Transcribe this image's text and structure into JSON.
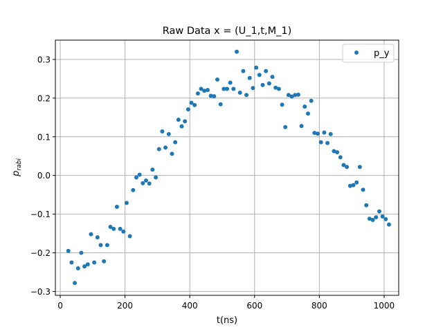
{
  "chart_data": {
    "type": "scatter",
    "title": "Raw Data x = (U_1,t,M_1)",
    "xlabel": "t(ns)",
    "ylabel_main": "p",
    "ylabel_sub": "rabi",
    "xlim": [
      -15,
      1045
    ],
    "ylim": [
      -0.31,
      0.35
    ],
    "xticks": [
      0,
      200,
      400,
      600,
      800,
      1000
    ],
    "xtick_labels": [
      "0",
      "200",
      "400",
      "600",
      "800",
      "1000"
    ],
    "yticks": [
      -0.3,
      -0.2,
      -0.1,
      0.0,
      0.1,
      0.2,
      0.3
    ],
    "ytick_labels": [
      "−0.3",
      "−0.2",
      "−0.1",
      "0.0",
      "0.1",
      "0.2",
      "0.3"
    ],
    "grid": true,
    "legend_position": "top-right",
    "colors": {
      "series": "#1f77b4",
      "grid": "#b0b0b0",
      "axes": "#000000"
    },
    "series": [
      {
        "name": "p_y",
        "points": [
          [
            25,
            -0.195
          ],
          [
            35,
            -0.225
          ],
          [
            45,
            -0.278
          ],
          [
            55,
            -0.24
          ],
          [
            65,
            -0.2
          ],
          [
            75,
            -0.235
          ],
          [
            85,
            -0.23
          ],
          [
            95,
            -0.152
          ],
          [
            105,
            -0.225
          ],
          [
            115,
            -0.16
          ],
          [
            125,
            -0.18
          ],
          [
            135,
            -0.222
          ],
          [
            145,
            -0.18
          ],
          [
            155,
            -0.133
          ],
          [
            165,
            -0.138
          ],
          [
            175,
            -0.081
          ],
          [
            185,
            -0.138
          ],
          [
            195,
            -0.145
          ],
          [
            205,
            -0.071
          ],
          [
            215,
            -0.157
          ],
          [
            225,
            -0.038
          ],
          [
            235,
            -0.005
          ],
          [
            245,
            0.002
          ],
          [
            255,
            -0.02
          ],
          [
            265,
            -0.013
          ],
          [
            275,
            -0.021
          ],
          [
            285,
            0.015
          ],
          [
            295,
            -0.005
          ],
          [
            305,
            0.068
          ],
          [
            315,
            0.114
          ],
          [
            325,
            0.072
          ],
          [
            335,
            0.107
          ],
          [
            345,
            0.056
          ],
          [
            355,
            0.086
          ],
          [
            365,
            0.144
          ],
          [
            375,
            0.127
          ],
          [
            385,
            0.14
          ],
          [
            395,
            0.171
          ],
          [
            405,
            0.188
          ],
          [
            415,
            0.182
          ],
          [
            425,
            0.212
          ],
          [
            435,
            0.224
          ],
          [
            445,
            0.219
          ],
          [
            455,
            0.221
          ],
          [
            465,
            0.206
          ],
          [
            475,
            0.205
          ],
          [
            485,
            0.248
          ],
          [
            495,
            0.184
          ],
          [
            505,
            0.224
          ],
          [
            515,
            0.224
          ],
          [
            525,
            0.24
          ],
          [
            535,
            0.224
          ],
          [
            545,
            0.32
          ],
          [
            555,
            0.214
          ],
          [
            565,
            0.27
          ],
          [
            575,
            0.208
          ],
          [
            585,
            0.252
          ],
          [
            595,
            0.226
          ],
          [
            605,
            0.279
          ],
          [
            615,
            0.26
          ],
          [
            625,
            0.234
          ],
          [
            635,
            0.27
          ],
          [
            645,
            0.238
          ],
          [
            655,
            0.255
          ],
          [
            665,
            0.227
          ],
          [
            675,
            0.224
          ],
          [
            685,
            0.183
          ],
          [
            695,
            0.125
          ],
          [
            705,
            0.208
          ],
          [
            715,
            0.204
          ],
          [
            725,
            0.208
          ],
          [
            735,
            0.209
          ],
          [
            745,
            0.128
          ],
          [
            755,
            0.178
          ],
          [
            765,
            0.16
          ],
          [
            775,
            0.193
          ],
          [
            785,
            0.11
          ],
          [
            795,
            0.108
          ],
          [
            805,
            0.086
          ],
          [
            815,
            0.111
          ],
          [
            825,
            0.084
          ],
          [
            835,
            0.107
          ],
          [
            845,
            0.063
          ],
          [
            855,
            0.06
          ],
          [
            865,
            0.047
          ],
          [
            875,
            0.027
          ],
          [
            885,
            0.022
          ],
          [
            895,
            -0.027
          ],
          [
            905,
            -0.025
          ],
          [
            915,
            -0.018
          ],
          [
            925,
            0.022
          ],
          [
            935,
            -0.037
          ],
          [
            945,
            -0.077
          ],
          [
            955,
            -0.112
          ],
          [
            965,
            -0.115
          ],
          [
            975,
            -0.108
          ],
          [
            985,
            -0.093
          ],
          [
            995,
            -0.106
          ],
          [
            1005,
            -0.113
          ],
          [
            1015,
            -0.127
          ]
        ]
      }
    ]
  }
}
